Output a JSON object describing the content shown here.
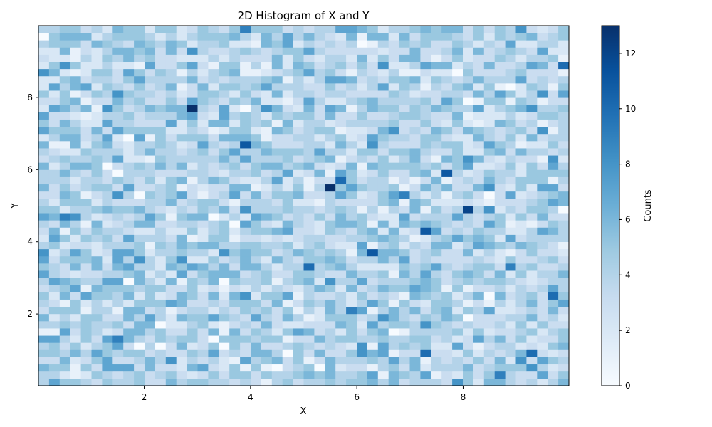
{
  "chart_data": {
    "type": "heatmap",
    "title": "2D Histogram of X and Y",
    "xlabel": "X",
    "ylabel": "Y",
    "x_ticks": [
      2,
      4,
      6,
      8
    ],
    "y_ticks": [
      2,
      4,
      6,
      8
    ],
    "xlim": [
      0.01,
      9.99
    ],
    "ylim": [
      0.01,
      9.99
    ],
    "bins": [
      50,
      50
    ],
    "colormap": "Blues",
    "colorbar": {
      "label": "Counts",
      "range": [
        0,
        13
      ],
      "ticks": [
        0,
        2,
        4,
        6,
        8,
        10,
        12
      ]
    },
    "value_range": [
      0,
      13
    ],
    "typical_count": 4,
    "peak_cells": [
      {
        "x": 2.9,
        "y": 7.7,
        "count": 13
      },
      {
        "x": 5.5,
        "y": 5.5,
        "count": 13
      },
      {
        "x": 8.1,
        "y": 4.9,
        "count": 12
      },
      {
        "x": 7.7,
        "y": 5.9,
        "count": 11
      },
      {
        "x": 7.3,
        "y": 4.3,
        "count": 11
      },
      {
        "x": 6.3,
        "y": 3.7,
        "count": 11
      },
      {
        "x": 3.9,
        "y": 6.7,
        "count": 11
      },
      {
        "x": 5.7,
        "y": 5.7,
        "count": 10
      },
      {
        "x": 9.9,
        "y": 8.9,
        "count": 10
      },
      {
        "x": 5.1,
        "y": 3.3,
        "count": 10
      },
      {
        "x": 9.7,
        "y": 2.5,
        "count": 10
      },
      {
        "x": 7.3,
        "y": 0.9,
        "count": 10
      },
      {
        "x": 9.3,
        "y": 0.9,
        "count": 10
      },
      {
        "x": 8.7,
        "y": 0.3,
        "count": 9
      },
      {
        "x": 0.5,
        "y": 4.7,
        "count": 9
      },
      {
        "x": 1.5,
        "y": 1.3,
        "count": 9
      },
      {
        "x": 3.9,
        "y": 9.9,
        "count": 9
      },
      {
        "x": 8.9,
        "y": 3.3,
        "count": 9
      },
      {
        "x": 6.9,
        "y": 5.3,
        "count": 9
      },
      {
        "x": 2.5,
        "y": 0.7,
        "count": 8
      },
      {
        "x": 5.9,
        "y": 2.1,
        "count": 9
      }
    ]
  }
}
